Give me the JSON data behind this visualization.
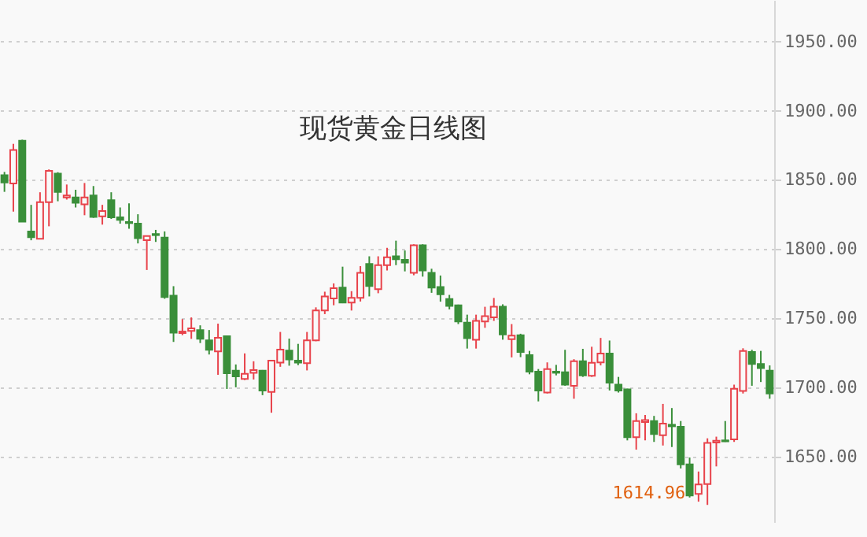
{
  "chart_data": {
    "type": "candlestick",
    "title": "现货黄金日线图",
    "categories": [
      null,
      null,
      null,
      null,
      null,
      null,
      null,
      null,
      null,
      null,
      null,
      null,
      null,
      null,
      null,
      null,
      null,
      null,
      null,
      null,
      null,
      null,
      null,
      null,
      null,
      null,
      null,
      null,
      null,
      null,
      null,
      null,
      null,
      null,
      null,
      null,
      null,
      null,
      null,
      null,
      null,
      null,
      null,
      null,
      null,
      null,
      null,
      null,
      null,
      null,
      null,
      null,
      null,
      null,
      null,
      null,
      null,
      null,
      null,
      null,
      null,
      null,
      null,
      null,
      null,
      null,
      null,
      null,
      null,
      null,
      null,
      null,
      null,
      null,
      null,
      null,
      null,
      null,
      null,
      null,
      null,
      null,
      null,
      null,
      null,
      null,
      null
    ],
    "ohlc": [
      [
        1853.4,
        1855.7,
        1841.3,
        1848.1
      ],
      [
        1847.4,
        1876.0,
        1827.0,
        1871.5
      ],
      [
        1878.3,
        1879.0,
        1819.5,
        1819.8
      ],
      [
        1812.7,
        1831.9,
        1806.3,
        1808.5
      ],
      [
        1807.4,
        1841.0,
        1807.0,
        1833.8
      ],
      [
        1833.8,
        1857.5,
        1816.4,
        1856.4
      ],
      [
        1854.5,
        1855.5,
        1834.5,
        1841.3
      ],
      [
        1837.2,
        1846.6,
        1835.7,
        1838.7
      ],
      [
        1837.2,
        1842.8,
        1830.0,
        1833.4
      ],
      [
        1832.3,
        1847.7,
        1824.4,
        1837.2
      ],
      [
        1838.7,
        1845.5,
        1822.5,
        1823.2
      ],
      [
        1823.6,
        1831.9,
        1817.6,
        1827.4
      ],
      [
        1835.3,
        1841.0,
        1821.7,
        1822.9
      ],
      [
        1822.9,
        1830.0,
        1818.3,
        1821.0
      ],
      [
        1819.5,
        1833.0,
        1814.6,
        1818.7
      ],
      [
        1818.3,
        1825.1,
        1804.0,
        1807.8
      ],
      [
        1806.3,
        1809.5,
        1784.8,
        1809.3
      ],
      [
        1810.8,
        1813.8,
        1805.1,
        1810.0
      ],
      [
        1808.2,
        1812.7,
        1764.0,
        1765.2
      ],
      [
        1766.3,
        1773.1,
        1732.8,
        1739.5
      ],
      [
        1739.2,
        1749.3,
        1737.7,
        1740.3
      ],
      [
        1740.7,
        1750.5,
        1735.0,
        1742.6
      ],
      [
        1741.4,
        1744.8,
        1732.0,
        1735.0
      ],
      [
        1733.9,
        1741.4,
        1723.7,
        1727.1
      ],
      [
        1726.0,
        1746.0,
        1709.0,
        1735.8
      ],
      [
        1736.9,
        1737.5,
        1698.8,
        1710.1
      ],
      [
        1712.0,
        1716.5,
        1700.0,
        1707.9
      ],
      [
        1706.0,
        1724.5,
        1705.2,
        1709.8
      ],
      [
        1710.5,
        1718.8,
        1705.6,
        1712.4
      ],
      [
        1712.0,
        1712.5,
        1694.3,
        1697.7
      ],
      [
        1696.7,
        1719.8,
        1681.6,
        1719.3
      ],
      [
        1717.8,
        1740.0,
        1714.8,
        1727.2
      ],
      [
        1726.5,
        1735.2,
        1715.6,
        1720.1
      ],
      [
        1719.3,
        1731.4,
        1716.0,
        1717.8
      ],
      [
        1717.4,
        1740.0,
        1712.2,
        1734.0
      ],
      [
        1734.0,
        1757.8,
        1733.3,
        1755.5
      ],
      [
        1755.5,
        1769.1,
        1752.9,
        1765.7
      ],
      [
        1764.2,
        1775.1,
        1759.3,
        1771.7
      ],
      [
        1772.1,
        1787.2,
        1760.8,
        1761.2
      ],
      [
        1761.2,
        1769.5,
        1755.5,
        1764.6
      ],
      [
        1764.6,
        1787.6,
        1762.0,
        1782.7
      ],
      [
        1789.1,
        1794.7,
        1765.7,
        1773.2
      ],
      [
        1771.0,
        1794.7,
        1768.0,
        1788.3
      ],
      [
        1788.3,
        1800.8,
        1784.5,
        1794.0
      ],
      [
        1794.7,
        1806.0,
        1788.3,
        1792.5
      ],
      [
        1792.1,
        1798.9,
        1783.8,
        1790.2
      ],
      [
        1782.7,
        1803.4,
        1781.0,
        1802.6
      ],
      [
        1802.6,
        1803.4,
        1780.0,
        1784.5
      ],
      [
        1782.7,
        1785.7,
        1768.3,
        1772.1
      ],
      [
        1772.5,
        1780.8,
        1761.9,
        1767.2
      ],
      [
        1763.8,
        1766.8,
        1756.3,
        1758.9
      ],
      [
        1759.3,
        1759.8,
        1745.7,
        1747.6
      ],
      [
        1746.8,
        1752.5,
        1728.0,
        1735.5
      ],
      [
        1734.4,
        1752.5,
        1728.0,
        1748.0
      ],
      [
        1747.6,
        1758.2,
        1743.0,
        1751.4
      ],
      [
        1750.6,
        1764.6,
        1748.0,
        1758.2
      ],
      [
        1758.2,
        1760.0,
        1734.4,
        1738.2
      ],
      [
        1734.8,
        1745.7,
        1721.6,
        1737.4
      ],
      [
        1737.6,
        1738.7,
        1721.8,
        1725.6
      ],
      [
        1723.3,
        1726.3,
        1709.4,
        1711.3
      ],
      [
        1711.3,
        1713.2,
        1689.8,
        1697.7
      ],
      [
        1696.2,
        1718.0,
        1695.5,
        1713.2
      ],
      [
        1711.3,
        1716.2,
        1708.6,
        1710.5
      ],
      [
        1710.9,
        1727.1,
        1701.1,
        1701.9
      ],
      [
        1701.1,
        1720.3,
        1691.7,
        1718.8
      ],
      [
        1718.8,
        1727.8,
        1707.5,
        1708.6
      ],
      [
        1708.3,
        1729.3,
        1707.5,
        1717.7
      ],
      [
        1718.0,
        1735.7,
        1715.8,
        1724.4
      ],
      [
        1724.4,
        1733.8,
        1697.7,
        1703.4
      ],
      [
        1701.9,
        1707.5,
        1696.2,
        1697.7
      ],
      [
        1698.5,
        1699.0,
        1661.6,
        1663.9
      ],
      [
        1663.9,
        1681.2,
        1654.9,
        1675.6
      ],
      [
        1674.8,
        1680.0,
        1661.6,
        1676.3
      ],
      [
        1675.6,
        1679.3,
        1660.5,
        1666.2
      ],
      [
        1665.4,
        1688.0,
        1657.9,
        1673.7
      ],
      [
        1672.9,
        1685.0,
        1656.8,
        1671.8
      ],
      [
        1671.4,
        1675.6,
        1641.3,
        1644.3
      ],
      [
        1644.3,
        1649.2,
        1620.3,
        1621.8
      ],
      [
        1622.9,
        1639.1,
        1617.3,
        1629.7
      ],
      [
        1630.1,
        1663.1,
        1614.96,
        1659.8
      ],
      [
        1660.1,
        1664.3,
        1642.8,
        1661.3
      ],
      [
        1661.6,
        1675.6,
        1660.5,
        1660.9
      ],
      [
        1662.4,
        1701.9,
        1660.5,
        1698.9
      ],
      [
        1697.4,
        1728.2,
        1695.5,
        1726.3
      ],
      [
        1725.6,
        1727.1,
        1701.1,
        1716.9
      ],
      [
        1716.9,
        1726.3,
        1703.8,
        1713.9
      ],
      [
        1712.0,
        1715.8,
        1691.7,
        1695.5
      ]
    ],
    "colors": [
      "#3a8f3a",
      "#e8434b",
      "#3a8f3a",
      "#3a8f3a",
      "#e8434b",
      "#e8434b",
      "#3a8f3a",
      "#e8434b",
      "#3a8f3a",
      "#e8434b",
      "#3a8f3a",
      "#e8434b",
      "#3a8f3a",
      "#3a8f3a",
      "#3a8f3a",
      "#3a8f3a",
      "#e8434b",
      "#3a8f3a",
      "#3a8f3a",
      "#3a8f3a",
      "#e8434b",
      "#e8434b",
      "#3a8f3a",
      "#3a8f3a",
      "#e8434b",
      "#3a8f3a",
      "#3a8f3a",
      "#e8434b",
      "#e8434b",
      "#3a8f3a",
      "#e8434b",
      "#e8434b",
      "#3a8f3a",
      "#3a8f3a",
      "#e8434b",
      "#e8434b",
      "#e8434b",
      "#e8434b",
      "#3a8f3a",
      "#e8434b",
      "#e8434b",
      "#3a8f3a",
      "#e8434b",
      "#e8434b",
      "#3a8f3a",
      "#3a8f3a",
      "#e8434b",
      "#3a8f3a",
      "#3a8f3a",
      "#3a8f3a",
      "#3a8f3a",
      "#3a8f3a",
      "#3a8f3a",
      "#e8434b",
      "#e8434b",
      "#e8434b",
      "#3a8f3a",
      "#e8434b",
      "#3a8f3a",
      "#3a8f3a",
      "#3a8f3a",
      "#e8434b",
      "#3a8f3a",
      "#3a8f3a",
      "#e8434b",
      "#3a8f3a",
      "#e8434b",
      "#e8434b",
      "#3a8f3a",
      "#3a8f3a",
      "#3a8f3a",
      "#e8434b",
      "#e8434b",
      "#3a8f3a",
      "#e8434b",
      "#3a8f3a",
      "#3a8f3a",
      "#3a8f3a",
      "#e8434b",
      "#e8434b",
      "#e8434b",
      "#3a8f3a",
      "#e8434b",
      "#e8434b",
      "#3a8f3a",
      "#3a8f3a",
      "#3a8f3a"
    ],
    "ylim": [
      1602,
      1980
    ],
    "yticks": [
      {
        "value": 1650,
        "label": "1650.00"
      },
      {
        "value": 1700,
        "label": "1700.00"
      },
      {
        "value": 1750,
        "label": "1750.00"
      },
      {
        "value": 1800,
        "label": "1800.00"
      },
      {
        "value": 1850,
        "label": "1850.00"
      },
      {
        "value": 1900,
        "label": "1900.00"
      },
      {
        "value": 1950,
        "label": "1950.00"
      }
    ],
    "grid": "y",
    "tick_labels": "y",
    "annotations": [
      "1614.96"
    ]
  }
}
